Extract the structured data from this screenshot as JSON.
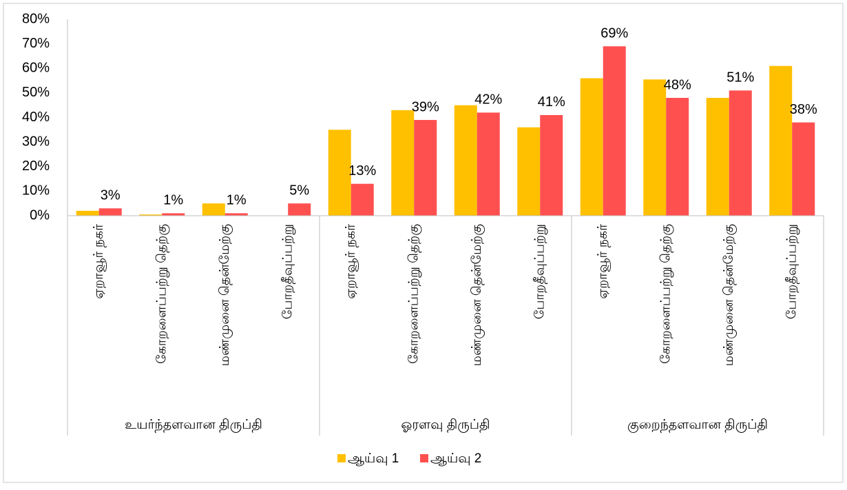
{
  "chart_data": {
    "type": "bar",
    "categories": [
      "ஏறாவூர் நகர்",
      "கோறளைப்பற்று தெற்கு",
      "மண்முனை தென்மேற்கு",
      "போறதீவுப்பற்று",
      "ஏறாவூர் நகர்",
      "கோறளைப்பற்று தெற்கு",
      "மண்முனை தென்மேற்கு",
      "போறதீவுப்பற்று",
      "ஏறாவூர் நகர்",
      "கோறளைப்பற்று தெற்கு",
      "மண்முனை தென்மேற்கு",
      "போறதீவுப்பற்று"
    ],
    "groups": [
      "உயர்ந்தளவான திருப்தி",
      "ஓரளவு திருப்தி",
      "குறைந்தளவான திருப்தி"
    ],
    "series": [
      {
        "name": "ஆய்வு 1",
        "color": "#ffc000",
        "values": [
          2,
          0.5,
          5,
          0,
          35,
          43,
          45,
          36,
          56,
          55.5,
          48,
          61
        ]
      },
      {
        "name": "ஆய்வு 2",
        "color": "#ff5050",
        "values": [
          3,
          1,
          1,
          5,
          13,
          39,
          42,
          41,
          69,
          48,
          51,
          38
        ],
        "value_labels": [
          "3%",
          "1%",
          "1%",
          "5%",
          "13%",
          "39%",
          "42%",
          "41%",
          "69%",
          "48%",
          "51%",
          "38%"
        ]
      }
    ],
    "ylim": [
      0,
      80
    ],
    "yticks": [
      {
        "value": 0,
        "label": "0%"
      },
      {
        "value": 10,
        "label": "10%"
      },
      {
        "value": 20,
        "label": "20%"
      },
      {
        "value": 30,
        "label": "30%"
      },
      {
        "value": 40,
        "label": "40%"
      },
      {
        "value": 50,
        "label": "50%"
      },
      {
        "value": 60,
        "label": "60%"
      },
      {
        "value": 70,
        "label": "70%"
      },
      {
        "value": 80,
        "label": "80%"
      }
    ],
    "grid": false,
    "legend": "bottom"
  }
}
